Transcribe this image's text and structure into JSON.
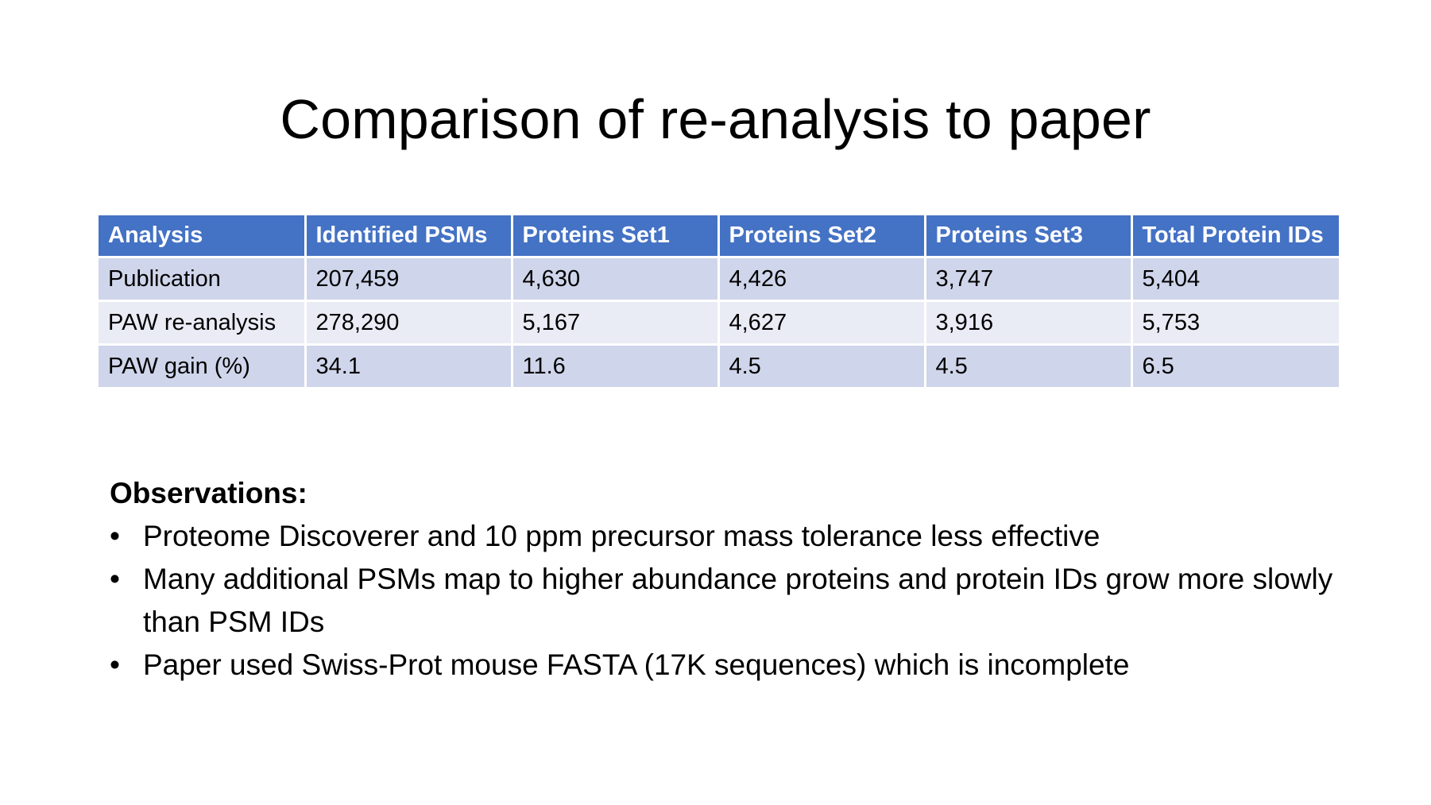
{
  "slide": {
    "title": "Comparison of re-analysis to paper"
  },
  "table": {
    "headers": [
      "Analysis",
      "Identified PSMs",
      "Proteins Set1",
      "Proteins Set2",
      "Proteins Set3",
      "Total Protein IDs"
    ],
    "rows": [
      [
        "Publication",
        "207,459",
        "4,630",
        "4,426",
        "3,747",
        "5,404"
      ],
      [
        "PAW re-analysis",
        "278,290",
        "5,167",
        "4,627",
        "3,916",
        "5,753"
      ],
      [
        "PAW gain (%)",
        "34.1",
        "11.6",
        "4.5",
        "4.5",
        "6.5"
      ]
    ],
    "colors": {
      "header_bg": "#4472c4",
      "row_odd_bg": "#cfd5ea",
      "row_even_bg": "#e9ebf5"
    }
  },
  "observations": {
    "heading": "Observations:",
    "bullet_glyph": "•",
    "items": [
      "Proteome Discoverer and 10 ppm precursor mass tolerance less effective",
      "Many additional PSMs map to higher abundance proteins and protein IDs grow more slowly than PSM IDs",
      "Paper used Swiss-Prot mouse FASTA (17K sequences) which is incomplete"
    ]
  }
}
